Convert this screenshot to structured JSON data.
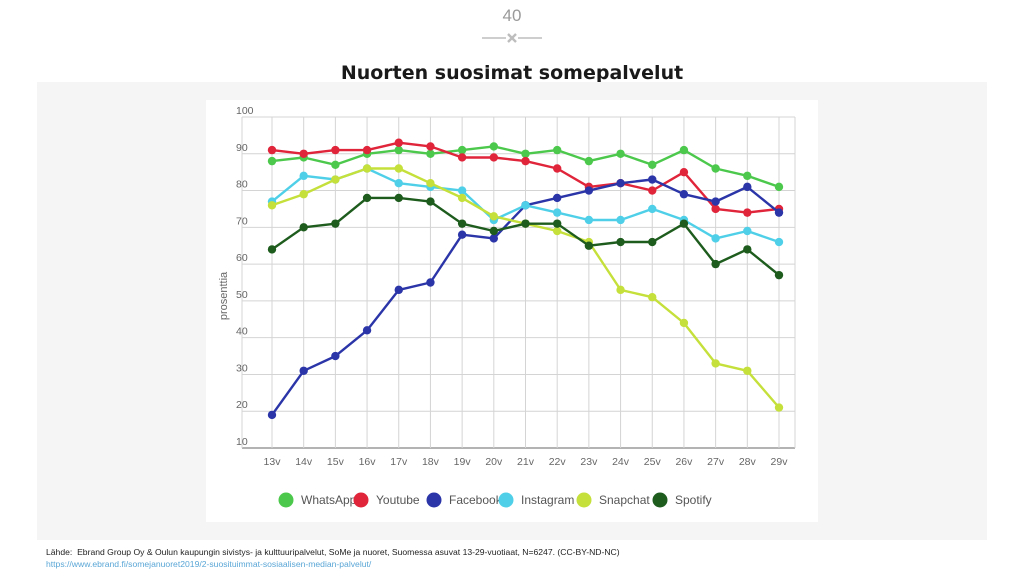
{
  "page": {
    "number": "40",
    "title": "Nuorten suosimat somepalvelut"
  },
  "source": {
    "label": "Lähde:",
    "text": "Ebrand Group Oy & Oulun kaupungin sivistys- ja kulttuuripalvelut, SoMe ja nuoret, Suomessa asuvat 13-29-vuotiaat, N=6247. (CC-BY-ND-NC)",
    "link": "https://www.ebrand.fi/somejanuoret2019/2-suosituimmat-sosiaalisen-median-palvelut/"
  },
  "chart_data": {
    "type": "line",
    "title": "",
    "xlabel": "",
    "ylabel": "prosenttia",
    "ylim": [
      10,
      100
    ],
    "yticks": [
      10,
      20,
      30,
      40,
      50,
      60,
      70,
      80,
      90,
      100
    ],
    "grid": true,
    "legend_position": "bottom",
    "categories": [
      "13v",
      "14v",
      "15v",
      "16v",
      "17v",
      "18v",
      "19v",
      "20v",
      "21v",
      "22v",
      "23v",
      "24v",
      "25v",
      "26v",
      "27v",
      "28v",
      "29v"
    ],
    "series": [
      {
        "name": "WhatsApp",
        "color": "#4cc94c",
        "values": [
          88,
          89,
          87,
          90,
          91,
          90,
          91,
          92,
          90,
          91,
          88,
          90,
          87,
          91,
          86,
          84,
          81
        ]
      },
      {
        "name": "Youtube",
        "color": "#e0243a",
        "values": [
          91,
          90,
          91,
          91,
          93,
          92,
          89,
          89,
          88,
          86,
          81,
          82,
          80,
          85,
          75,
          74,
          75
        ]
      },
      {
        "name": "Facebook",
        "color": "#2b35a8",
        "values": [
          19,
          31,
          35,
          42,
          53,
          55,
          68,
          67,
          76,
          78,
          80,
          82,
          83,
          79,
          77,
          81,
          74
        ]
      },
      {
        "name": "Instagram",
        "color": "#4fd0e8",
        "values": [
          77,
          84,
          83,
          86,
          82,
          81,
          80,
          72,
          76,
          74,
          72,
          72,
          75,
          72,
          67,
          69,
          66
        ]
      },
      {
        "name": "Snapchat",
        "color": "#c5e03a",
        "values": [
          76,
          79,
          83,
          86,
          86,
          82,
          78,
          73,
          71,
          69,
          66,
          53,
          51,
          44,
          33,
          31,
          21
        ]
      },
      {
        "name": "Spotify",
        "color": "#1e5c1e",
        "values": [
          64,
          70,
          71,
          78,
          78,
          77,
          71,
          69,
          71,
          71,
          65,
          66,
          66,
          71,
          60,
          64,
          57
        ]
      }
    ]
  }
}
